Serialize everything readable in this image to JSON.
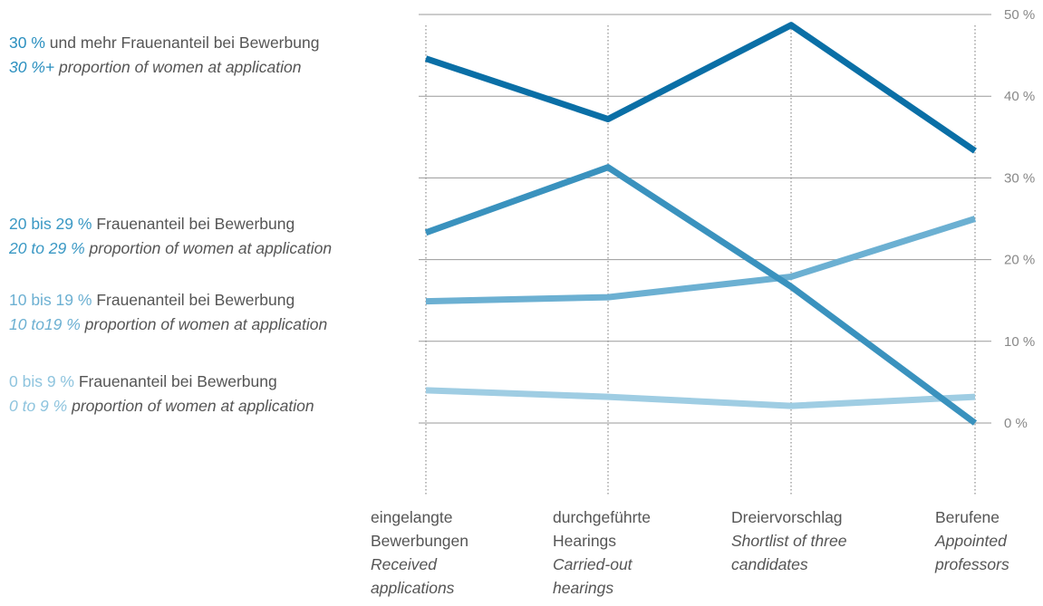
{
  "chart_data": {
    "type": "line",
    "categories": [
      {
        "de": "eingelangte Bewerbungen",
        "de_lines": [
          "eingelangte",
          "Bewerbungen"
        ],
        "en_lines": [
          "Received",
          "applications"
        ]
      },
      {
        "de": "durchgeführte Hearings",
        "de_lines": [
          "durchgeführte",
          "Hearings"
        ],
        "en_lines": [
          "Carried-out",
          "hearings"
        ]
      },
      {
        "de": "Dreiervorschlag",
        "de_lines": [
          "Dreiervorschlag"
        ],
        "en_lines": [
          "Shortlist of three",
          "candidates"
        ]
      },
      {
        "de": "Berufene",
        "de_lines": [
          "Berufene"
        ],
        "en_lines": [
          "Appointed",
          "professors"
        ]
      }
    ],
    "ylim": [
      0,
      50
    ],
    "yticks": [
      0,
      10,
      20,
      30,
      40,
      50
    ],
    "ytick_labels": [
      "0 %",
      "10 %",
      "20 %",
      "30 %",
      "40 %",
      "50 %"
    ],
    "grid": "horizontal",
    "legend_position": "left",
    "series": [
      {
        "label_de_accent": "30 %",
        "label_de_rest": " und mehr Frauenanteil bei Bewerbung",
        "label_en_accent": "30 %+",
        "label_en_rest": " proportion of women at application",
        "color": "#0a6fa6",
        "values": [
          44.6,
          37.2,
          48.7,
          33.3
        ]
      },
      {
        "label_de_accent": "20 bis 29 %",
        "label_de_rest": " Frauenanteil bei Bewerbung",
        "label_en_accent": "20 to 29 %",
        "label_en_rest": " proportion of women at application",
        "color": "#3a92be",
        "values": [
          23.3,
          31.3,
          16.7,
          0
        ]
      },
      {
        "label_de_accent": "10 bis 19 %",
        "label_de_rest": " Frauenanteil bei Bewerbung",
        "label_en_accent": "10 to19 %",
        "label_en_rest": " proportion of women at application",
        "color": "#6cb0d2",
        "values": [
          14.9,
          15.4,
          17.9,
          25.0
        ]
      },
      {
        "label_de_accent": "0 bis 9 %",
        "label_de_rest": " Frauenanteil bei Bewerbung",
        "label_en_accent": "0 to 9 %",
        "label_en_rest": " proportion of women at application",
        "color": "#9fcde3",
        "values": [
          4.0,
          3.2,
          2.1,
          3.2
        ]
      }
    ]
  }
}
